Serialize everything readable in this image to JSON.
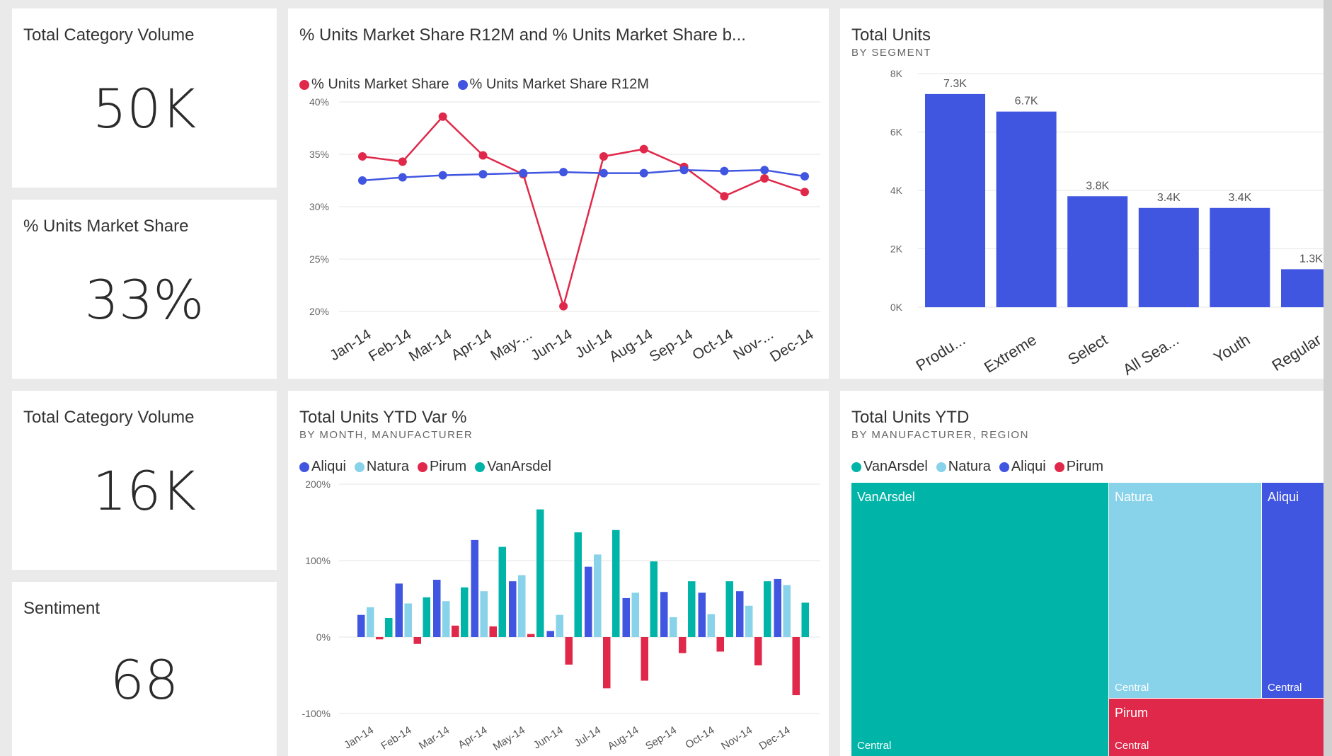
{
  "cards": [
    {
      "title": "Total Category Volume",
      "value": "50K"
    },
    {
      "title": "% Units Market Share",
      "value": "33%"
    },
    {
      "title": "Total Category Volume",
      "value": "16K"
    },
    {
      "title": "Sentiment",
      "value": "68"
    }
  ],
  "colors": {
    "blue": "#4055e0",
    "red": "#e0294a",
    "lightblue": "#88d2ea",
    "teal": "#00b5a8"
  },
  "chart_data": [
    {
      "type": "line",
      "title": "% Units Market Share R12M and % Units Market Share b...",
      "xlabel": "",
      "ylabel": "",
      "categories": [
        "Jan-14",
        "Feb-14",
        "Mar-14",
        "Apr-14",
        "May-...",
        "Jun-14",
        "Jul-14",
        "Aug-14",
        "Sep-14",
        "Oct-14",
        "Nov-...",
        "Dec-14"
      ],
      "ylim": [
        20,
        40
      ],
      "yticks": [
        "20%",
        "25%",
        "30%",
        "35%",
        "40%"
      ],
      "series": [
        {
          "name": "% Units Market Share",
          "color": "#e0294a",
          "values": [
            34.8,
            34.3,
            38.6,
            34.9,
            33.1,
            20.5,
            34.8,
            35.5,
            33.8,
            31.0,
            32.7,
            31.4
          ]
        },
        {
          "name": "% Units Market Share R12M",
          "color": "#4055e0",
          "values": [
            32.5,
            32.8,
            33.0,
            33.1,
            33.2,
            33.3,
            33.2,
            33.2,
            33.5,
            33.4,
            33.5,
            32.9
          ]
        }
      ]
    },
    {
      "type": "bar",
      "title": "Total Units",
      "subtitle": "BY SEGMENT",
      "categories": [
        "Produ...",
        "Extreme",
        "Select",
        "All Sea...",
        "Youth",
        "Regular"
      ],
      "values": [
        7.3,
        6.7,
        3.8,
        3.4,
        3.4,
        1.3
      ],
      "data_labels": [
        "7.3K",
        "6.7K",
        "3.8K",
        "3.4K",
        "3.4K",
        "1.3K"
      ],
      "ylim": [
        0,
        8
      ],
      "yticks": [
        "0K",
        "2K",
        "4K",
        "6K",
        "8K"
      ],
      "color": "#4055e0"
    },
    {
      "type": "bar",
      "title": "Total Units YTD Var %",
      "subtitle": "BY MONTH, MANUFACTURER",
      "categories": [
        "Jan-14",
        "Feb-14",
        "Mar-14",
        "Apr-14",
        "May-14",
        "Jun-14",
        "Jul-14",
        "Aug-14",
        "Sep-14",
        "Oct-14",
        "Nov-14",
        "Dec-14"
      ],
      "ylim": [
        -100,
        200
      ],
      "yticks": [
        "-100%",
        "0%",
        "100%",
        "200%"
      ],
      "series": [
        {
          "name": "Aliqui",
          "color": "#4055e0",
          "values": [
            29,
            70,
            75,
            127,
            73,
            8,
            92,
            51,
            59,
            58,
            60,
            76
          ]
        },
        {
          "name": "Natura",
          "color": "#88d2ea",
          "values": [
            39,
            44,
            47,
            60,
            81,
            29,
            108,
            58,
            26,
            30,
            41,
            68
          ]
        },
        {
          "name": "Pirum",
          "color": "#e0294a",
          "values": [
            -3,
            -9,
            15,
            14,
            4,
            -36,
            -67,
            -57,
            -21,
            -19,
            -37,
            -76
          ]
        },
        {
          "name": "VanArsdel",
          "color": "#00b5a8",
          "values": [
            25,
            52,
            65,
            118,
            167,
            137,
            140,
            99,
            73,
            73,
            73,
            45
          ]
        }
      ]
    }
  ],
  "treemap": {
    "title": "Total Units YTD",
    "subtitle": "BY MANUFACTURER, REGION",
    "legend": [
      {
        "name": "VanArsdel",
        "color": "#00b5a8"
      },
      {
        "name": "Natura",
        "color": "#88d2ea"
      },
      {
        "name": "Aliqui",
        "color": "#4055e0"
      },
      {
        "name": "Pirum",
        "color": "#e0294a"
      }
    ],
    "cells": [
      {
        "name": "VanArsdel",
        "region": "Central",
        "color": "#00b5a8",
        "share": 0.56
      },
      {
        "name": "Natura",
        "region": "Central",
        "color": "#88d2ea",
        "share": 0.27
      },
      {
        "name": "Aliqui",
        "region": "Central",
        "color": "#4055e0",
        "share": 0.11
      },
      {
        "name": "Pirum",
        "region": "Central",
        "color": "#e0294a",
        "share": 0.14
      }
    ]
  }
}
